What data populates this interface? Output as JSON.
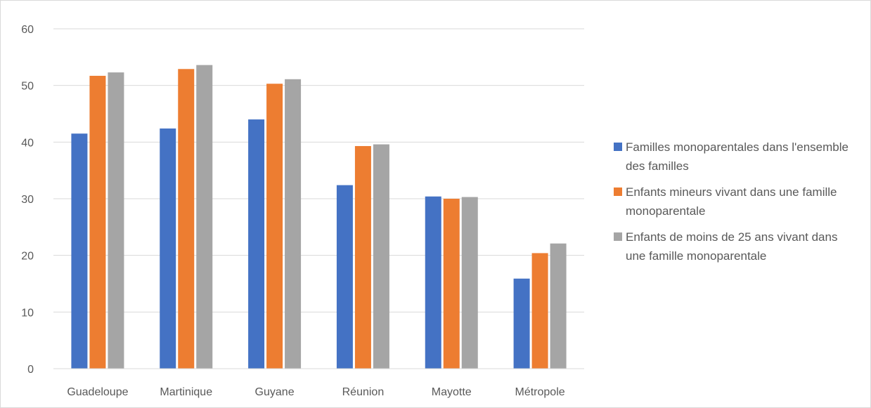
{
  "chart_data": {
    "type": "bar",
    "title": "",
    "xlabel": "",
    "ylabel": "",
    "ylim": [
      0,
      60
    ],
    "yticks": [
      0,
      10,
      20,
      30,
      40,
      50,
      60
    ],
    "grid": true,
    "legend_position": "right",
    "categories": [
      "Guadeloupe",
      "Martinique",
      "Guyane",
      "Réunion",
      "Mayotte",
      "Métropole"
    ],
    "series": [
      {
        "name": "Familles monoparentales dans l'ensemble des familles",
        "color": "#4472c4",
        "values": [
          41.5,
          42.4,
          44.0,
          32.4,
          30.4,
          15.9
        ]
      },
      {
        "name": "Enfants mineurs vivant dans une famille monoparentale",
        "color": "#ed7d31",
        "values": [
          51.7,
          52.9,
          50.3,
          39.3,
          30.0,
          20.4
        ]
      },
      {
        "name": "Enfants de moins de 25 ans vivant dans une famille monoparentale",
        "color": "#a5a5a5",
        "values": [
          52.3,
          53.6,
          51.1,
          39.6,
          30.3,
          22.1
        ]
      }
    ]
  }
}
